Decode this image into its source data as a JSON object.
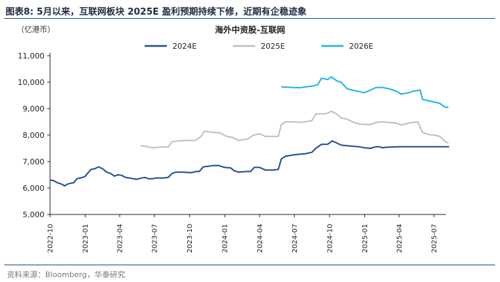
{
  "figure": {
    "title": "图表8:   5月以来，互联网板块 2025E 盈利预期持续下修，近期有企稳迹象",
    "unit": "（亿港币）",
    "source": "资料来源：Bloomberg，华泰研究"
  },
  "chart_data": {
    "type": "line",
    "title": "海外中资股-互联网",
    "xlabel": "",
    "ylabel": "",
    "ylim": [
      5000,
      11000
    ],
    "yticks": [
      5000,
      6000,
      7000,
      8000,
      9000,
      10000,
      11000
    ],
    "ytick_labels": [
      "5,000",
      "6,000",
      "7,000",
      "8,000",
      "9,000",
      "10,000",
      "11,000"
    ],
    "xlim": [
      "2022-10",
      "2025-08"
    ],
    "xticks": [
      "2022-10",
      "2023-01",
      "2023-04",
      "2023-07",
      "2023-10",
      "2024-01",
      "2024-04",
      "2024-07",
      "2024-10",
      "2025-01",
      "2025-04",
      "2025-07"
    ],
    "grid": false,
    "legend": "top",
    "series": [
      {
        "name": "2024E",
        "color": "#1f4e8c",
        "points": [
          [
            "2022-10-01",
            6300
          ],
          [
            "2022-10-10",
            6280
          ],
          [
            "2022-10-20",
            6200
          ],
          [
            "2022-10-31",
            6150
          ],
          [
            "2022-11-08",
            6080
          ],
          [
            "2022-11-16",
            6150
          ],
          [
            "2022-11-24",
            6180
          ],
          [
            "2022-12-02",
            6200
          ],
          [
            "2022-12-10",
            6350
          ],
          [
            "2022-12-20",
            6380
          ],
          [
            "2022-12-31",
            6430
          ],
          [
            "2023-01-10",
            6600
          ],
          [
            "2023-01-16",
            6700
          ],
          [
            "2023-01-26",
            6730
          ],
          [
            "2023-02-05",
            6800
          ],
          [
            "2023-02-16",
            6720
          ],
          [
            "2023-02-26",
            6600
          ],
          [
            "2023-03-08",
            6550
          ],
          [
            "2023-03-18",
            6450
          ],
          [
            "2023-03-28",
            6500
          ],
          [
            "2023-04-06",
            6480
          ],
          [
            "2023-04-16",
            6400
          ],
          [
            "2023-04-26",
            6380
          ],
          [
            "2023-05-06",
            6350
          ],
          [
            "2023-05-16",
            6330
          ],
          [
            "2023-05-26",
            6370
          ],
          [
            "2023-06-06",
            6400
          ],
          [
            "2023-06-16",
            6350
          ],
          [
            "2023-06-26",
            6350
          ],
          [
            "2023-07-06",
            6380
          ],
          [
            "2023-07-26",
            6380
          ],
          [
            "2023-08-06",
            6400
          ],
          [
            "2023-08-16",
            6550
          ],
          [
            "2023-08-26",
            6600
          ],
          [
            "2023-09-16",
            6600
          ],
          [
            "2023-10-06",
            6580
          ],
          [
            "2023-10-16",
            6620
          ],
          [
            "2023-10-26",
            6620
          ],
          [
            "2023-11-06",
            6800
          ],
          [
            "2023-11-20",
            6820
          ],
          [
            "2023-12-01",
            6850
          ],
          [
            "2023-12-16",
            6850
          ],
          [
            "2023-12-31",
            6780
          ],
          [
            "2024-01-16",
            6760
          ],
          [
            "2024-01-26",
            6650
          ],
          [
            "2024-02-06",
            6600
          ],
          [
            "2024-02-26",
            6620
          ],
          [
            "2024-03-08",
            6620
          ],
          [
            "2024-03-18",
            6780
          ],
          [
            "2024-04-01",
            6780
          ],
          [
            "2024-04-16",
            6680
          ],
          [
            "2024-05-06",
            6680
          ],
          [
            "2024-05-20",
            6700
          ],
          [
            "2024-05-28",
            7100
          ],
          [
            "2024-06-08",
            7200
          ],
          [
            "2024-06-28",
            7250
          ],
          [
            "2024-07-16",
            7280
          ],
          [
            "2024-07-31",
            7300
          ],
          [
            "2024-08-16",
            7350
          ],
          [
            "2024-08-26",
            7500
          ],
          [
            "2024-09-10",
            7650
          ],
          [
            "2024-09-26",
            7650
          ],
          [
            "2024-10-08",
            7780
          ],
          [
            "2024-10-20",
            7700
          ],
          [
            "2024-10-31",
            7620
          ],
          [
            "2024-11-16",
            7600
          ],
          [
            "2024-11-30",
            7580
          ],
          [
            "2024-12-16",
            7560
          ],
          [
            "2024-12-31",
            7520
          ],
          [
            "2025-01-16",
            7500
          ],
          [
            "2025-01-31",
            7560
          ],
          [
            "2025-02-08",
            7560
          ],
          [
            "2025-02-16",
            7520
          ],
          [
            "2025-02-26",
            7540
          ],
          [
            "2025-03-31",
            7560
          ],
          [
            "2025-05-31",
            7560
          ],
          [
            "2025-07-31",
            7560
          ],
          [
            "2025-08-10",
            7560
          ]
        ]
      },
      {
        "name": "2025E",
        "color": "#bfbfbf",
        "points": [
          [
            "2023-05-26",
            7600
          ],
          [
            "2023-06-06",
            7580
          ],
          [
            "2023-06-16",
            7550
          ],
          [
            "2023-06-26",
            7520
          ],
          [
            "2023-07-16",
            7550
          ],
          [
            "2023-08-06",
            7550
          ],
          [
            "2023-08-16",
            7750
          ],
          [
            "2023-08-31",
            7780
          ],
          [
            "2023-09-26",
            7800
          ],
          [
            "2023-10-16",
            7800
          ],
          [
            "2023-10-31",
            7950
          ],
          [
            "2023-11-08",
            8150
          ],
          [
            "2023-11-20",
            8120
          ],
          [
            "2023-12-06",
            8100
          ],
          [
            "2023-12-20",
            8080
          ],
          [
            "2024-01-06",
            7950
          ],
          [
            "2024-01-20",
            7920
          ],
          [
            "2024-02-06",
            7800
          ],
          [
            "2024-03-01",
            7850
          ],
          [
            "2024-03-16",
            8000
          ],
          [
            "2024-04-01",
            8050
          ],
          [
            "2024-04-16",
            7950
          ],
          [
            "2024-05-20",
            7950
          ],
          [
            "2024-05-28",
            8400
          ],
          [
            "2024-06-08",
            8500
          ],
          [
            "2024-06-26",
            8500
          ],
          [
            "2024-07-16",
            8480
          ],
          [
            "2024-07-31",
            8500
          ],
          [
            "2024-08-16",
            8550
          ],
          [
            "2024-08-26",
            8800
          ],
          [
            "2024-09-16",
            8800
          ],
          [
            "2024-09-26",
            8820
          ],
          [
            "2024-10-06",
            8900
          ],
          [
            "2024-10-20",
            8800
          ],
          [
            "2024-10-31",
            8650
          ],
          [
            "2024-11-16",
            8600
          ],
          [
            "2024-11-30",
            8500
          ],
          [
            "2024-12-16",
            8420
          ],
          [
            "2024-12-31",
            8400
          ],
          [
            "2025-01-16",
            8400
          ],
          [
            "2025-01-31",
            8480
          ],
          [
            "2025-02-16",
            8500
          ],
          [
            "2025-03-06",
            8480
          ],
          [
            "2025-03-26",
            8450
          ],
          [
            "2025-04-06",
            8380
          ],
          [
            "2025-04-26",
            8450
          ],
          [
            "2025-05-06",
            8480
          ],
          [
            "2025-05-20",
            8500
          ],
          [
            "2025-06-01",
            8100
          ],
          [
            "2025-06-16",
            8020
          ],
          [
            "2025-07-01",
            8000
          ],
          [
            "2025-07-16",
            7950
          ],
          [
            "2025-07-31",
            7750
          ],
          [
            "2025-08-08",
            7700
          ]
        ]
      },
      {
        "name": "2026E",
        "color": "#1fb4e2",
        "points": [
          [
            "2024-05-28",
            9820
          ],
          [
            "2024-06-26",
            9800
          ],
          [
            "2024-07-16",
            9790
          ],
          [
            "2024-07-31",
            9820
          ],
          [
            "2024-08-16",
            9850
          ],
          [
            "2024-08-31",
            9900
          ],
          [
            "2024-09-10",
            10150
          ],
          [
            "2024-09-26",
            10100
          ],
          [
            "2024-10-06",
            10200
          ],
          [
            "2024-10-20",
            10050
          ],
          [
            "2024-10-31",
            10000
          ],
          [
            "2024-11-16",
            9750
          ],
          [
            "2024-11-30",
            9700
          ],
          [
            "2024-12-16",
            9650
          ],
          [
            "2024-12-31",
            9600
          ],
          [
            "2025-01-16",
            9700
          ],
          [
            "2025-01-31",
            9800
          ],
          [
            "2025-02-16",
            9800
          ],
          [
            "2025-03-06",
            9750
          ],
          [
            "2025-03-26",
            9650
          ],
          [
            "2025-04-06",
            9550
          ],
          [
            "2025-04-26",
            9600
          ],
          [
            "2025-05-06",
            9650
          ],
          [
            "2025-05-26",
            9700
          ],
          [
            "2025-06-01",
            9350
          ],
          [
            "2025-06-16",
            9300
          ],
          [
            "2025-07-01",
            9250
          ],
          [
            "2025-07-16",
            9200
          ],
          [
            "2025-07-31",
            9050
          ],
          [
            "2025-08-08",
            9050
          ]
        ]
      }
    ]
  }
}
